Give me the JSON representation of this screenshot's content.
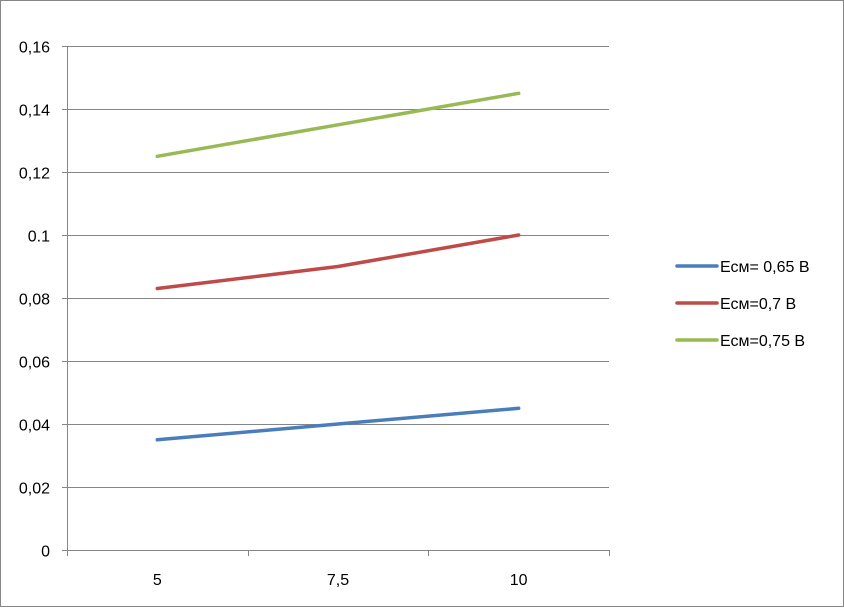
{
  "chart_data": {
    "type": "line",
    "title": "",
    "xlabel": "",
    "ylabel": "",
    "categories": [
      "5",
      "7,5",
      "10"
    ],
    "x": [
      5,
      7.5,
      10
    ],
    "ylim": [
      0,
      0.16
    ],
    "yticks": [
      0,
      0.02,
      0.04,
      0.06,
      0.08,
      0.1,
      0.12,
      0.14,
      0.16
    ],
    "ytick_labels": [
      "0",
      "0,02",
      "0,04",
      "0,06",
      "0,08",
      "0.1",
      "0,12",
      "0,14",
      "0,16"
    ],
    "grid": true,
    "legend_position": "right",
    "series": [
      {
        "name": "Есм= 0,65 В",
        "values": [
          0.035,
          0.04,
          0.045
        ],
        "color": "#4a7ebb"
      },
      {
        "name": "Есм=0,7 В",
        "values": [
          0.083,
          0.09,
          0.1
        ],
        "color": "#be4b48"
      },
      {
        "name": "Есм=0,75 В",
        "values": [
          0.125,
          0.135,
          0.145
        ],
        "color": "#98b954"
      }
    ]
  }
}
